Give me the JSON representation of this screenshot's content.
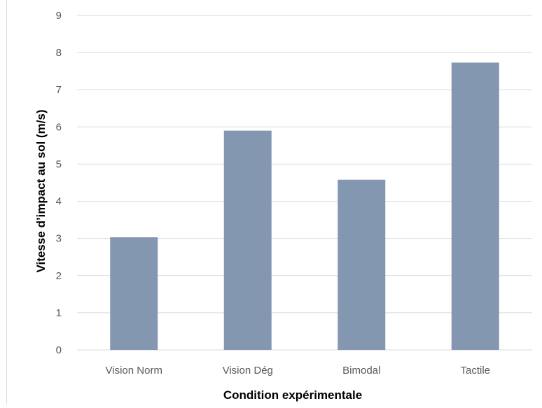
{
  "chart_data": {
    "type": "bar",
    "categories": [
      "Vision Norm",
      "Vision Dég",
      "Bimodal",
      "Tactile"
    ],
    "values": [
      3.03,
      5.9,
      4.58,
      7.73
    ],
    "xlabel": "Condition expérimentale",
    "ylabel": "Vitesse d’impact au sol (m/s)",
    "ylim": [
      0,
      9
    ],
    "yticks": [
      0,
      1,
      2,
      3,
      4,
      5,
      6,
      7,
      8,
      9
    ],
    "grid": true,
    "legend": "none",
    "colors": {
      "bar": "#8497b0",
      "grid": "#d9d9d9",
      "tick_text": "#595959",
      "axis_title": "#000000"
    }
  }
}
